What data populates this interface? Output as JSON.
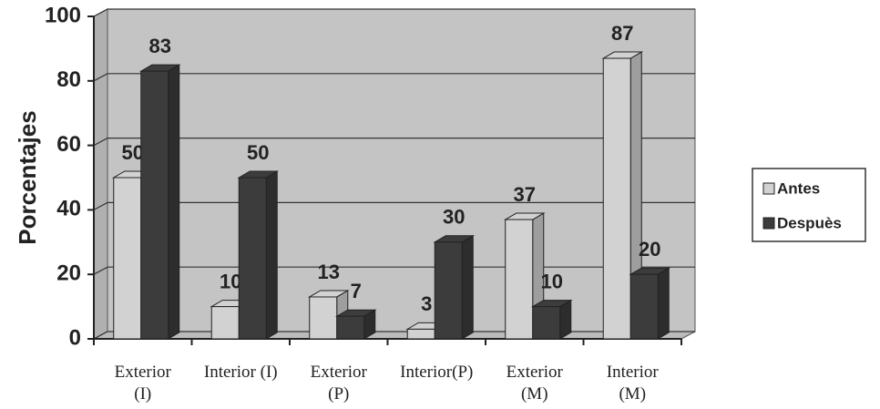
{
  "chart_data": {
    "type": "bar3d",
    "ylabel": "Porcentajes",
    "categories": [
      "Exterior\n(I)",
      "Interior (I)",
      "Exterior\n(P)",
      "Interior(P)",
      "Exterior\n(M)",
      "Interior\n(M)"
    ],
    "series": [
      {
        "name": "Antes",
        "color": "#d2d2d2",
        "values": [
          50,
          10,
          13,
          3,
          37,
          87
        ]
      },
      {
        "name": "Despuès",
        "color": "#3c3c3c",
        "values": [
          83,
          50,
          7,
          30,
          10,
          20
        ]
      }
    ],
    "ylim": [
      0,
      100
    ],
    "yticks": [
      0,
      20,
      40,
      60,
      80,
      100
    ],
    "grid": true,
    "legend": "right"
  }
}
